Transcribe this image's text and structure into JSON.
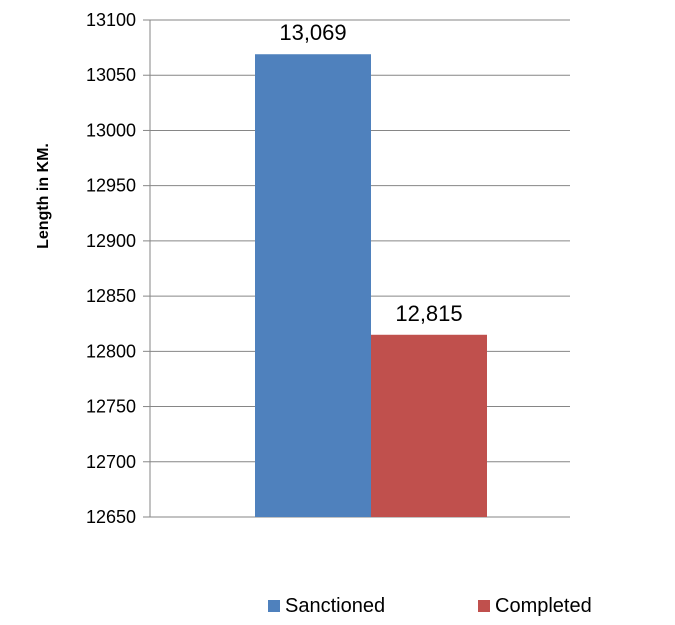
{
  "chart_data": {
    "type": "bar",
    "ylabel": "Length in KM.",
    "ylim": [
      12650,
      13100
    ],
    "yticks": [
      12650,
      12700,
      12750,
      12800,
      12850,
      12900,
      12950,
      13000,
      13050,
      13100
    ],
    "grid": true,
    "legend_position": "bottom",
    "series": [
      {
        "name": "Sanctioned",
        "value": 13069,
        "label": "13,069",
        "color": "#4F81BD"
      },
      {
        "name": "Completed",
        "value": 12815,
        "label": "12,815",
        "color": "#C0504D"
      }
    ]
  }
}
